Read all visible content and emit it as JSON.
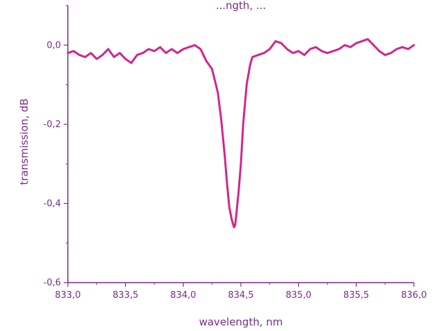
{
  "chart_data": {
    "type": "line",
    "title": "",
    "title_partial": "...ngth, ...",
    "xlabel": "wavelength, nm",
    "ylabel": "transmission, dB",
    "xlim": [
      833.0,
      836.0
    ],
    "ylim": [
      -0.6,
      0.1
    ],
    "xticks": [
      "833,0",
      "833,5",
      "834,0",
      "834,5",
      "835,0",
      "835,5",
      "836,0"
    ],
    "xtick_values": [
      833.0,
      833.5,
      834.0,
      834.5,
      835.0,
      835.5,
      836.0
    ],
    "yticks": [
      "-0,6",
      "-0,4",
      "-0,2",
      "0,0"
    ],
    "ytick_values": [
      -0.6,
      -0.4,
      -0.2,
      0.0
    ],
    "grid": false,
    "colors": {
      "axis": "#7a2a8c",
      "line": "#d4248c",
      "text": "#7a2a8c"
    },
    "series": [
      {
        "x": [
          833.0,
          833.05,
          833.1,
          833.15,
          833.2,
          833.25,
          833.3,
          833.35,
          833.4,
          833.45,
          833.5,
          833.55,
          833.6,
          833.65,
          833.7,
          833.75,
          833.8,
          833.85,
          833.9,
          833.95,
          834.0,
          834.05,
          834.1,
          834.15,
          834.2,
          834.25,
          834.3,
          834.33,
          834.36,
          834.38,
          834.4,
          834.42,
          834.44,
          834.45,
          834.46,
          834.48,
          834.5,
          834.52,
          834.55,
          834.58,
          834.6,
          834.65,
          834.7,
          834.75,
          834.8,
          834.85,
          834.9,
          834.95,
          835.0,
          835.05,
          835.1,
          835.15,
          835.2,
          835.25,
          835.3,
          835.35,
          835.4,
          835.45,
          835.5,
          835.55,
          835.6,
          835.65,
          835.7,
          835.75,
          835.8,
          835.85,
          835.9,
          835.95,
          836.0
        ],
        "y": [
          -0.02,
          -0.015,
          -0.025,
          -0.03,
          -0.02,
          -0.035,
          -0.025,
          -0.01,
          -0.03,
          -0.02,
          -0.035,
          -0.045,
          -0.025,
          -0.02,
          -0.01,
          -0.015,
          -0.005,
          -0.02,
          -0.01,
          -0.02,
          -0.01,
          -0.005,
          0.0,
          -0.01,
          -0.04,
          -0.06,
          -0.12,
          -0.19,
          -0.28,
          -0.35,
          -0.41,
          -0.44,
          -0.46,
          -0.455,
          -0.43,
          -0.37,
          -0.3,
          -0.2,
          -0.1,
          -0.05,
          -0.03,
          -0.025,
          -0.02,
          -0.01,
          0.01,
          0.005,
          -0.01,
          -0.02,
          -0.015,
          -0.025,
          -0.01,
          -0.005,
          -0.015,
          -0.02,
          -0.015,
          -0.01,
          0.0,
          -0.005,
          0.005,
          0.01,
          0.015,
          0.0,
          -0.015,
          -0.025,
          -0.02,
          -0.01,
          -0.005,
          -0.01,
          0.0
        ]
      }
    ]
  }
}
